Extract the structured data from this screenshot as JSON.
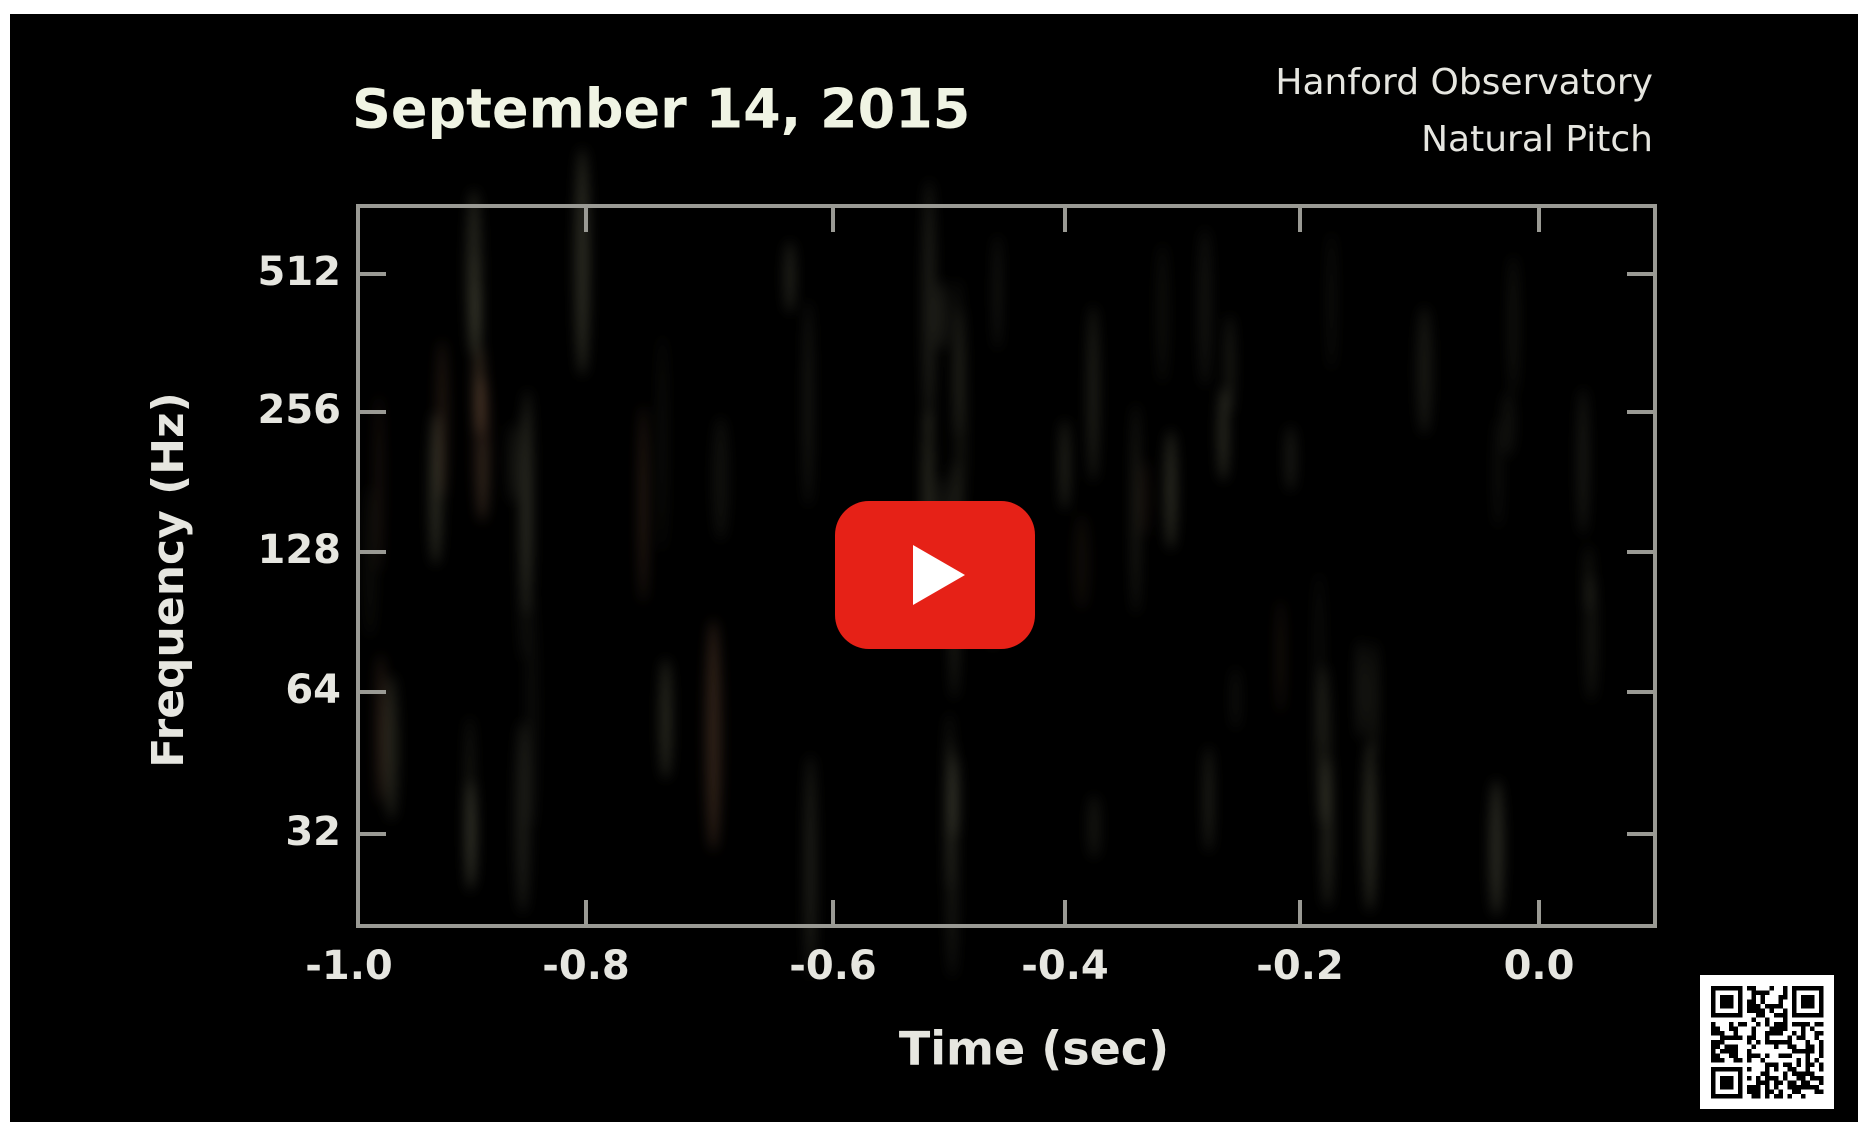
{
  "video": {
    "title": "September 14, 2015",
    "subtitle_lines": [
      "Hanford Observatory",
      "Natural Pitch"
    ],
    "y_axis_label": "Frequency (Hz)",
    "y_tick_labels": [
      "512",
      "256",
      "128",
      "64",
      "32"
    ],
    "x_axis_label": "Time (sec)",
    "x_tick_labels": [
      "-1.0",
      "-0.8",
      "-0.6",
      "-0.4",
      "-0.2",
      "0.0"
    ]
  }
}
